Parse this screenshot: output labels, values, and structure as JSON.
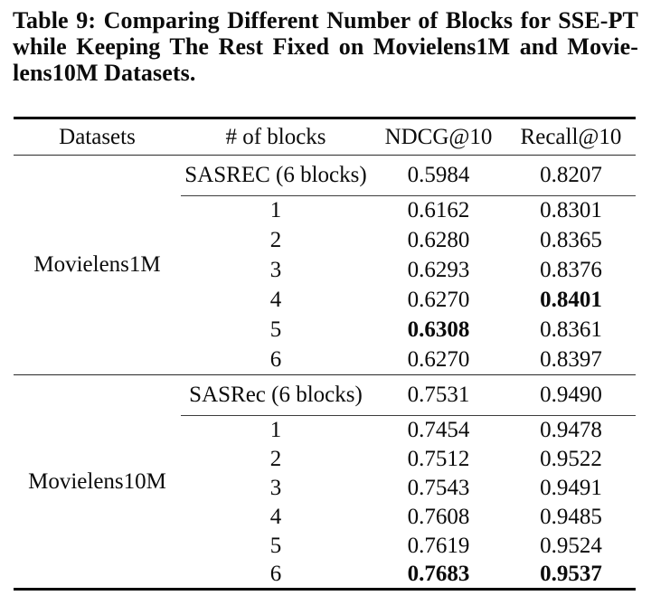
{
  "caption": {
    "lines": [
      "Table 9: Comparing Different Number of Blocks for SSE-PT",
      "while Keeping The Rest Fixed on Movielens1M and Movie-",
      "lens10M Datasets."
    ]
  },
  "table": {
    "headers": {
      "datasets": "Datasets",
      "blocks": "# of blocks",
      "ndcg": "NDCG@10",
      "recall": "Recall@10"
    },
    "sections": [
      {
        "dataset": "Movielens1M",
        "baseline": {
          "label": "SASREC (6 blocks)",
          "ndcg": "0.5984",
          "recall": "0.8207"
        },
        "rows": [
          {
            "blocks": "1",
            "ndcg": "0.6162",
            "recall": "0.8301"
          },
          {
            "blocks": "2",
            "ndcg": "0.6280",
            "recall": "0.8365"
          },
          {
            "blocks": "3",
            "ndcg": "0.6293",
            "recall": "0.8376"
          },
          {
            "blocks": "4",
            "ndcg": "0.6270",
            "recall": "0.8401"
          },
          {
            "blocks": "5",
            "ndcg": "0.6308",
            "recall": "0.8361"
          },
          {
            "blocks": "6",
            "ndcg": "0.6270",
            "recall": "0.8397"
          }
        ]
      },
      {
        "dataset": "Movielens10M",
        "baseline": {
          "label": "SASRec (6 blocks)",
          "ndcg": "0.7531",
          "recall": "0.9490"
        },
        "rows": [
          {
            "blocks": "1",
            "ndcg": "0.7454",
            "recall": "0.9478"
          },
          {
            "blocks": "2",
            "ndcg": "0.7512",
            "recall": "0.9522"
          },
          {
            "blocks": "3",
            "ndcg": "0.7543",
            "recall": "0.9491"
          },
          {
            "blocks": "4",
            "ndcg": "0.7608",
            "recall": "0.9485"
          },
          {
            "blocks": "5",
            "ndcg": "0.7619",
            "recall": "0.9524"
          },
          {
            "blocks": "6",
            "ndcg": "0.7683",
            "recall": "0.9537"
          }
        ]
      }
    ]
  }
}
